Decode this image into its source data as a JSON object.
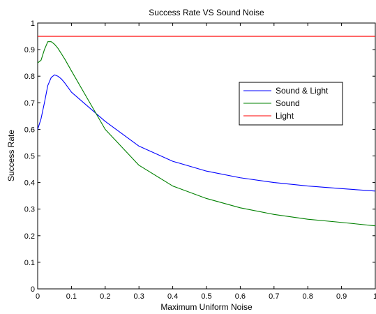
{
  "chart_data": {
    "type": "line",
    "title": "Success Rate VS Sound Noise",
    "xlabel": "Maximum Uniform Noise",
    "ylabel": "Success Rate",
    "xlim": [
      0,
      1
    ],
    "ylim": [
      0,
      1
    ],
    "xticks": [
      0,
      0.1,
      0.2,
      0.3,
      0.4,
      0.5,
      0.6,
      0.7,
      0.8,
      0.9,
      1
    ],
    "yticks": [
      0,
      0.1,
      0.2,
      0.3,
      0.4,
      0.5,
      0.6,
      0.7,
      0.8,
      0.9,
      1
    ],
    "xtick_labels": [
      "0",
      "0.1",
      "0.2",
      "0.3",
      "0.4",
      "0.5",
      "0.6",
      "0.7",
      "0.8",
      "0.9",
      "1"
    ],
    "ytick_labels": [
      "0",
      "0.1",
      "0.2",
      "0.3",
      "0.4",
      "0.5",
      "0.6",
      "0.7",
      "0.8",
      "0.9",
      "1"
    ],
    "grid": false,
    "legend_position": "right",
    "series": [
      {
        "name": "Sound & Light",
        "color": "#0000ff",
        "x": [
          0,
          0.01,
          0.02,
          0.03,
          0.04,
          0.05,
          0.06,
          0.07,
          0.08,
          0.1,
          0.2,
          0.3,
          0.4,
          0.5,
          0.6,
          0.7,
          0.8,
          0.9,
          1.0
        ],
        "y": [
          0.6,
          0.64,
          0.7,
          0.765,
          0.795,
          0.805,
          0.8,
          0.79,
          0.775,
          0.74,
          0.63,
          0.537,
          0.48,
          0.443,
          0.418,
          0.4,
          0.387,
          0.377,
          0.368
        ]
      },
      {
        "name": "Sound",
        "color": "#008000",
        "x": [
          0,
          0.01,
          0.02,
          0.03,
          0.04,
          0.05,
          0.06,
          0.07,
          0.08,
          0.1,
          0.2,
          0.3,
          0.4,
          0.5,
          0.6,
          0.7,
          0.8,
          0.9,
          1.0
        ],
        "y": [
          0.85,
          0.86,
          0.9,
          0.93,
          0.93,
          0.92,
          0.905,
          0.885,
          0.865,
          0.82,
          0.6,
          0.465,
          0.387,
          0.34,
          0.305,
          0.28,
          0.262,
          0.25,
          0.237
        ]
      },
      {
        "name": "Light",
        "color": "#ff0000",
        "x": [
          0,
          1
        ],
        "y": [
          0.95,
          0.95
        ]
      }
    ]
  }
}
